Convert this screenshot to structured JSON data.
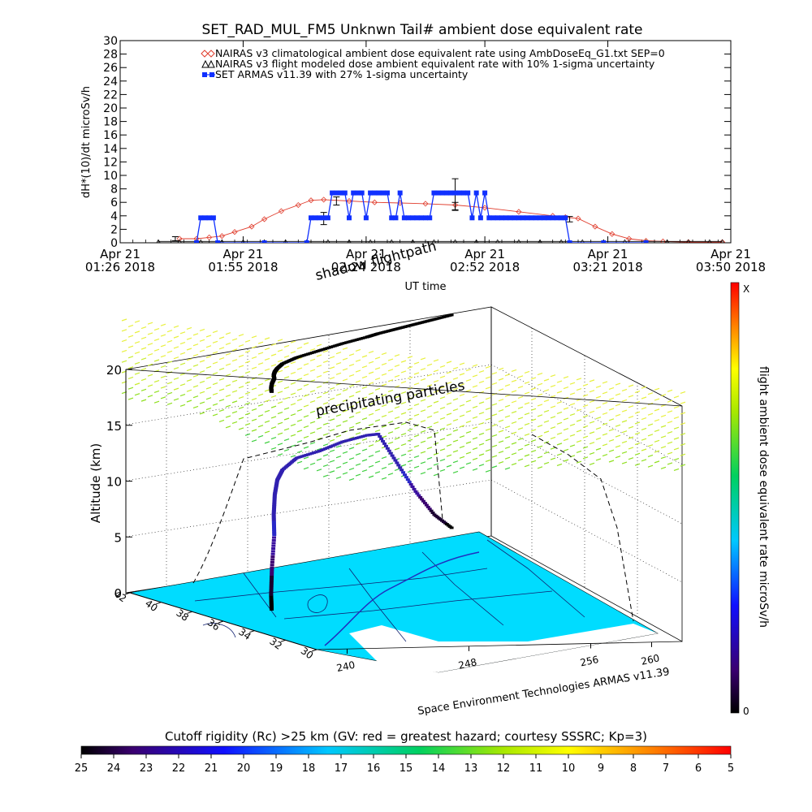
{
  "chart_data": [
    {
      "type": "line",
      "title": "SET_RAD_MUL_FM5 Unknwn Tail#  ambient dose equivalent rate",
      "ylabel": "dH*(10)/dt microSv/h",
      "xlabel": "UT time",
      "ylim": [
        0,
        30
      ],
      "yticks": [
        30,
        28,
        26,
        24,
        22,
        20,
        18,
        16,
        14,
        12,
        10,
        8,
        6,
        4,
        2,
        0
      ],
      "xlim": [
        86,
        230
      ],
      "xticks": [
        {
          "t": 86,
          "line1": "Apr 21",
          "line2": "01:26 2018"
        },
        {
          "t": 115,
          "line1": "Apr 21",
          "line2": "01:55 2018"
        },
        {
          "t": 144,
          "line1": "Apr 21",
          "line2": "02:24 2018"
        },
        {
          "t": 172,
          "line1": "Apr 21",
          "line2": "02:52 2018"
        },
        {
          "t": 201,
          "line1": "Apr 21",
          "line2": "03:21 2018"
        },
        {
          "t": 230,
          "line1": "Apr 21",
          "line2": "03:50 2018"
        }
      ],
      "legend": {
        "placement": "top",
        "entries": [
          {
            "marker": "diamond",
            "color": "#e03c2c",
            "label": "NAIRAS v3 climatological ambient dose equivalent rate using AmbDoseEq_G1.txt SEP=0"
          },
          {
            "marker": "triangle",
            "color": "#000000",
            "label": "NAIRAS v3 flight modeled dose ambient equivalent rate with 10% 1-sigma uncertainty"
          },
          {
            "marker": "square",
            "color": "#1030ff",
            "label": "SET ARMAS v11.39 with 27% 1-sigma uncertainty"
          }
        ]
      },
      "series": [
        {
          "name": "NAIRAS v3 climatological ambient dose equivalent rate using AmbDoseEq_G1.txt SEP=0",
          "color": "#e03c2c",
          "x": [
            100,
            104,
            107,
            110,
            113,
            117,
            120,
            124,
            128,
            131,
            134,
            140,
            146,
            152,
            158,
            165,
            172,
            180,
            188,
            191,
            194,
            198,
            202,
            206,
            210,
            214,
            220,
            228
          ],
          "y": [
            0.6,
            0.6,
            0.8,
            1.0,
            1.6,
            2.4,
            3.5,
            4.7,
            5.6,
            6.3,
            6.4,
            6.2,
            6.0,
            5.9,
            5.8,
            5.6,
            5.2,
            4.6,
            4.0,
            3.8,
            3.6,
            2.4,
            1.3,
            0.6,
            0.3,
            0.2,
            0.1,
            0.1
          ]
        },
        {
          "name": "NAIRAS v3 flight modeled dose ambient equivalent rate with 10% 1-sigma uncertainty",
          "color": "#000000",
          "x": [
            95,
            100,
            105,
            110,
            115,
            120,
            125,
            130,
            135,
            140,
            145,
            150,
            155,
            160,
            165,
            170,
            175,
            180,
            185,
            190,
            195,
            200,
            205,
            210,
            215,
            220,
            225,
            228
          ],
          "y": [
            0.2,
            0.2,
            0.2,
            0.2,
            0.2,
            0.2,
            0.2,
            0.2,
            0.2,
            0.2,
            0.2,
            0.2,
            0.2,
            0.2,
            0.2,
            0.2,
            0.2,
            0.2,
            0.2,
            0.2,
            0.2,
            0.2,
            0.2,
            0.2,
            0.2,
            0.2,
            0.2,
            0.2
          ],
          "error_bars": [
            {
              "x": 99,
              "y": 0.6,
              "err": 0.3
            },
            {
              "x": 134,
              "y": 3.6,
              "err": 0.9
            },
            {
              "x": 137,
              "y": 6.2,
              "err": 0.6
            },
            {
              "x": 165,
              "y": 7.2,
              "err": 2.3
            },
            {
              "x": 165,
              "y": 5.4,
              "err": 0.6
            },
            {
              "x": 192,
              "y": 3.5,
              "err": 0.4
            }
          ]
        },
        {
          "name": "SET ARMAS v11.39 with 27% 1-sigma uncertainty",
          "color": "#1030ff",
          "x": [
            104,
            105,
            106,
            107,
            108,
            109,
            120,
            130,
            131,
            132,
            133,
            134,
            135,
            136,
            137,
            138,
            139,
            140,
            141,
            142,
            143,
            144,
            145,
            146,
            147,
            148,
            149,
            150,
            151,
            152,
            153,
            154,
            155,
            156,
            157,
            158,
            159,
            160,
            161,
            162,
            163,
            164,
            165,
            166,
            167,
            168,
            169,
            170,
            171,
            172,
            173,
            174,
            175,
            176,
            177,
            178,
            179,
            180,
            181,
            182,
            183,
            184,
            185,
            186,
            187,
            188,
            189,
            190,
            191,
            192,
            200,
            210
          ],
          "y": [
            0,
            3.7,
            3.7,
            3.7,
            3.7,
            0,
            0,
            0,
            3.7,
            3.7,
            3.7,
            3.7,
            3.7,
            7.4,
            7.4,
            7.4,
            7.4,
            3.7,
            7.4,
            7.4,
            7.4,
            3.7,
            7.4,
            7.4,
            7.4,
            7.4,
            7.4,
            3.7,
            3.7,
            7.4,
            3.7,
            3.7,
            3.7,
            3.7,
            3.7,
            3.7,
            3.7,
            7.4,
            7.4,
            7.4,
            7.4,
            7.4,
            7.4,
            7.4,
            7.4,
            7.4,
            3.7,
            7.4,
            3.7,
            7.4,
            3.7,
            3.7,
            3.7,
            3.7,
            3.7,
            3.7,
            3.7,
            3.7,
            3.7,
            3.7,
            3.7,
            3.7,
            3.7,
            3.7,
            3.7,
            3.7,
            3.7,
            3.7,
            3.7,
            0,
            0,
            0
          ]
        }
      ]
    },
    {
      "type": "scatter",
      "view": "3d-perspective",
      "zlabel": "Altitude (km)",
      "zlim": [
        0,
        20
      ],
      "zticks": [
        0,
        5,
        10,
        15,
        20
      ],
      "ylim": [
        30,
        42
      ],
      "yticks": [
        30,
        32,
        34,
        36,
        38,
        40,
        42
      ],
      "xlim": [
        238,
        262
      ],
      "xticks": [
        240,
        248,
        256,
        260
      ],
      "annotations": [
        "shadow flightpath",
        "precipitating particles"
      ],
      "credit": "Space Environment Technologies ARMAS v11.39",
      "colorbar_right": {
        "label": "flight ambient dose equivalent rate microSv/h",
        "top": "X",
        "bottom": "0"
      },
      "colorbar_bottom": {
        "title": "Cutoff rigidity (Rc) >25 km (GV: red = greatest hazard; courtesy SSSRC; Kp=3)",
        "ticks": [
          25,
          24,
          23,
          22,
          21,
          20,
          19,
          18,
          17,
          16,
          15,
          14,
          13,
          12,
          11,
          10,
          9,
          8,
          7,
          6,
          5
        ]
      },
      "flight_path": {
        "lon": [
          241.0,
          241.5,
          242.2,
          243.0,
          243.5,
          244.0,
          244.6,
          245.5,
          247.0,
          249.0,
          251.0,
          253.0,
          254.0,
          255.5,
          257.0,
          258.5,
          260.0
        ],
        "lat": [
          35.7,
          36.2,
          36.8,
          37.4,
          37.9,
          38.3,
          38.7,
          39.2,
          39.7,
          40.1,
          40.5,
          40.8,
          41.0,
          41.2,
          41.4,
          41.6,
          41.8
        ],
        "alt_km": [
          0.5,
          1.5,
          3.5,
          6.0,
          7.5,
          9.0,
          10.0,
          10.5,
          11.0,
          11.0,
          11.2,
          11.2,
          11.0,
          8.0,
          5.0,
          2.5,
          0.8
        ]
      }
    }
  ]
}
